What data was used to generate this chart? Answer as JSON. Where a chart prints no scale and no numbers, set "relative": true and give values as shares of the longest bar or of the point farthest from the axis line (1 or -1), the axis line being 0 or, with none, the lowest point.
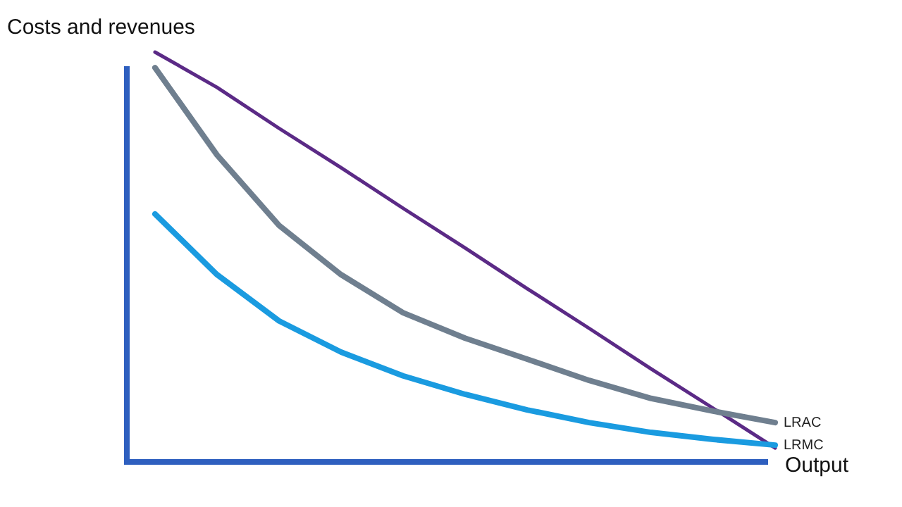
{
  "chart_data": {
    "type": "line",
    "relative": true,
    "ylabel": "Costs and revenues",
    "xlabel": "Output",
    "marker": "none",
    "categories": [
      null,
      null,
      null,
      null,
      null,
      null,
      null,
      null,
      null,
      null,
      null
    ],
    "series": [
      {
        "color": "#5b2a86",
        "values": [
          1.0,
          0.914,
          0.814,
          0.718,
          0.619,
          0.522,
          0.423,
          0.326,
          0.227,
          0.131,
          0.034
        ]
      },
      {
        "name": "LRAC",
        "color": "#6f7f8f",
        "values": [
          0.962,
          0.749,
          0.577,
          0.457,
          0.364,
          0.302,
          0.251,
          0.199,
          0.155,
          0.124,
          0.096
        ]
      },
      {
        "name": "LRMC",
        "color": "#1a9be0",
        "values": [
          0.605,
          0.457,
          0.344,
          0.268,
          0.21,
          0.165,
          0.127,
          0.096,
          0.072,
          0.055,
          0.041
        ]
      }
    ]
  }
}
